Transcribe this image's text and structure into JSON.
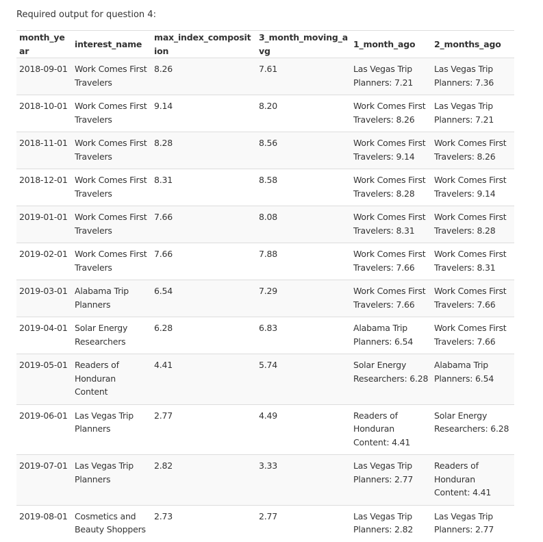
{
  "caption": "Required output for question 4:",
  "table": {
    "headers": [
      "month_year",
      "interest_name",
      "max_index_composition",
      "3_month_moving_avg",
      "1_month_ago",
      "2_months_ago"
    ],
    "rows": [
      [
        "2018-09-01",
        "Work Comes First Travelers",
        "8.26",
        "7.61",
        "Las Vegas Trip Planners: 7.21",
        "Las Vegas Trip Planners: 7.36"
      ],
      [
        "2018-10-01",
        "Work Comes First Travelers",
        "9.14",
        "8.20",
        "Work Comes First Travelers: 8.26",
        "Las Vegas Trip Planners: 7.21"
      ],
      [
        "2018-11-01",
        "Work Comes First Travelers",
        "8.28",
        "8.56",
        "Work Comes First Travelers: 9.14",
        "Work Comes First Travelers: 8.26"
      ],
      [
        "2018-12-01",
        "Work Comes First Travelers",
        "8.31",
        "8.58",
        "Work Comes First Travelers: 8.28",
        "Work Comes First Travelers: 9.14"
      ],
      [
        "2019-01-01",
        "Work Comes First Travelers",
        "7.66",
        "8.08",
        "Work Comes First Travelers: 8.31",
        "Work Comes First Travelers: 8.28"
      ],
      [
        "2019-02-01",
        "Work Comes First Travelers",
        "7.66",
        "7.88",
        "Work Comes First Travelers: 7.66",
        "Work Comes First Travelers: 8.31"
      ],
      [
        "2019-03-01",
        "Alabama Trip Planners",
        "6.54",
        "7.29",
        "Work Comes First Travelers: 7.66",
        "Work Comes First Travelers: 7.66"
      ],
      [
        "2019-04-01",
        "Solar Energy Researchers",
        "6.28",
        "6.83",
        "Alabama Trip Planners: 6.54",
        "Work Comes First Travelers: 7.66"
      ],
      [
        "2019-05-01",
        "Readers of Honduran Content",
        "4.41",
        "5.74",
        "Solar Energy Researchers: 6.28",
        "Alabama Trip Planners: 6.54"
      ],
      [
        "2019-06-01",
        "Las Vegas Trip Planners",
        "2.77",
        "4.49",
        "Readers of Honduran Content: 4.41",
        "Solar Energy Researchers: 6.28"
      ],
      [
        "2019-07-01",
        "Las Vegas Trip Planners",
        "2.82",
        "3.33",
        "Las Vegas Trip Planners: 2.77",
        "Readers of Honduran Content: 4.41"
      ],
      [
        "2019-08-01",
        "Cosmetics and Beauty Shoppers",
        "2.73",
        "2.77",
        "Las Vegas Trip Planners: 2.82",
        "Las Vegas Trip Planners: 2.77"
      ]
    ]
  }
}
